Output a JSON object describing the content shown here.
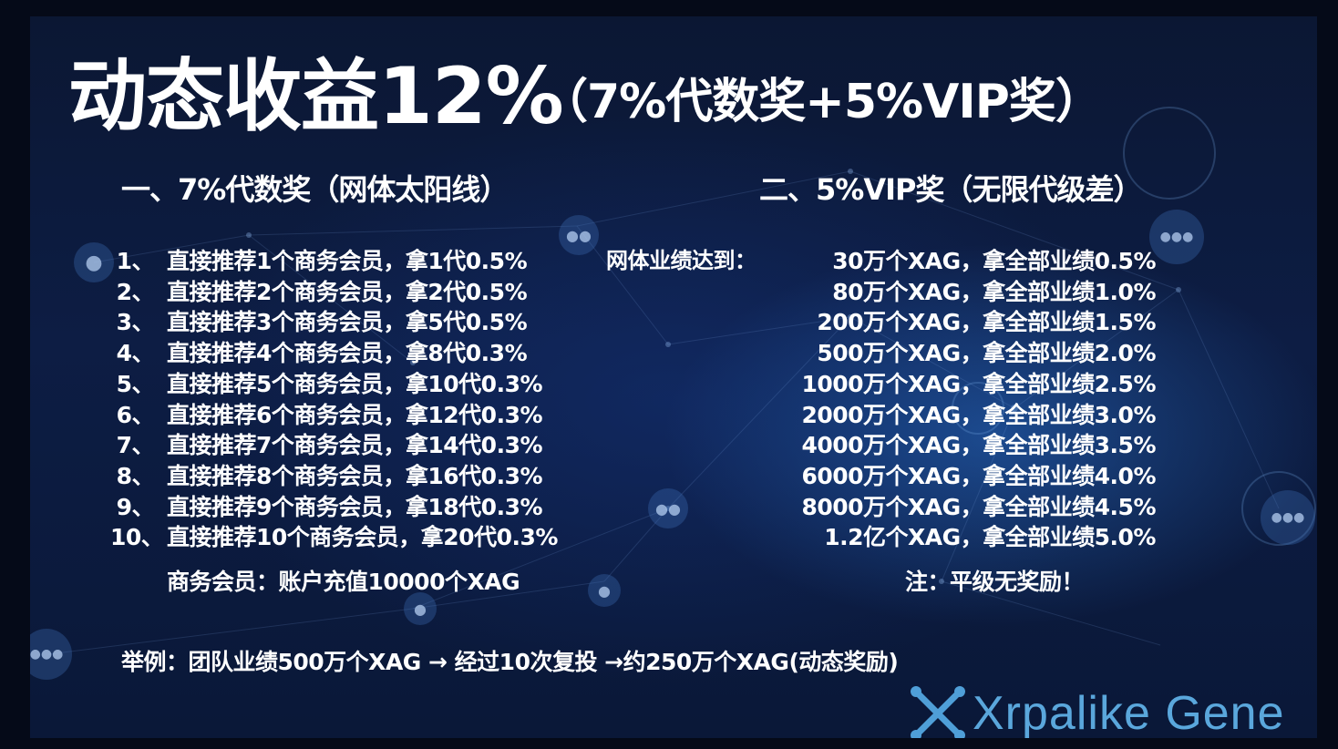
{
  "title": {
    "main": "动态收益12%",
    "sub": "（7%代数奖+5%VIP奖）"
  },
  "left": {
    "heading": "一、7%代数奖（网体太阳线）",
    "items": [
      {
        "num": "1、",
        "text": "直接推荐1个商务会员，拿1代0.5%"
      },
      {
        "num": "2、",
        "text": "直接推荐2个商务会员，拿2代0.5%"
      },
      {
        "num": "3、",
        "text": "直接推荐3个商务会员，拿5代0.5%"
      },
      {
        "num": "4、",
        "text": "直接推荐4个商务会员，拿8代0.3%"
      },
      {
        "num": "5、",
        "text": "直接推荐5个商务会员，拿10代0.3%"
      },
      {
        "num": "6、",
        "text": "直接推荐6个商务会员，拿12代0.3%"
      },
      {
        "num": "7、",
        "text": "直接推荐7个商务会员，拿14代0.3%"
      },
      {
        "num": "8、",
        "text": "直接推荐8个商务会员，拿16代0.3%"
      },
      {
        "num": "9、",
        "text": "直接推荐9个商务会员，拿18代0.3%"
      },
      {
        "num": "10、",
        "text": "直接推荐10个商务会员，拿20代0.3%"
      }
    ],
    "note": "商务会员：账户充值10000个XAG"
  },
  "right": {
    "heading": "二、5%VIP奖（无限代级差）",
    "label": "网体业绩达到：",
    "items": [
      "30万个XAG，拿全部业绩0.5%",
      "80万个XAG，拿全部业绩1.0%",
      "200万个XAG，拿全部业绩1.5%",
      "500万个XAG，拿全部业绩2.0%",
      "1000万个XAG，拿全部业绩2.5%",
      "2000万个XAG，拿全部业绩3.0%",
      "4000万个XAG，拿全部业绩3.5%",
      "6000万个XAG，拿全部业绩4.0%",
      "8000万个XAG，拿全部业绩4.5%",
      "1.2亿个XAG，拿全部业绩5.0%"
    ],
    "note": "注：平级无奖励！"
  },
  "example": "举例：团队业绩500万个XAG → 经过10次复投 →约250万个XAG(动态奖励)",
  "logo": {
    "text": "Xrpalike Gene",
    "icon": "x-molecule-logo-icon",
    "color": "#5aa7dc"
  },
  "background_icons": [
    "person-icon",
    "group-icon"
  ]
}
